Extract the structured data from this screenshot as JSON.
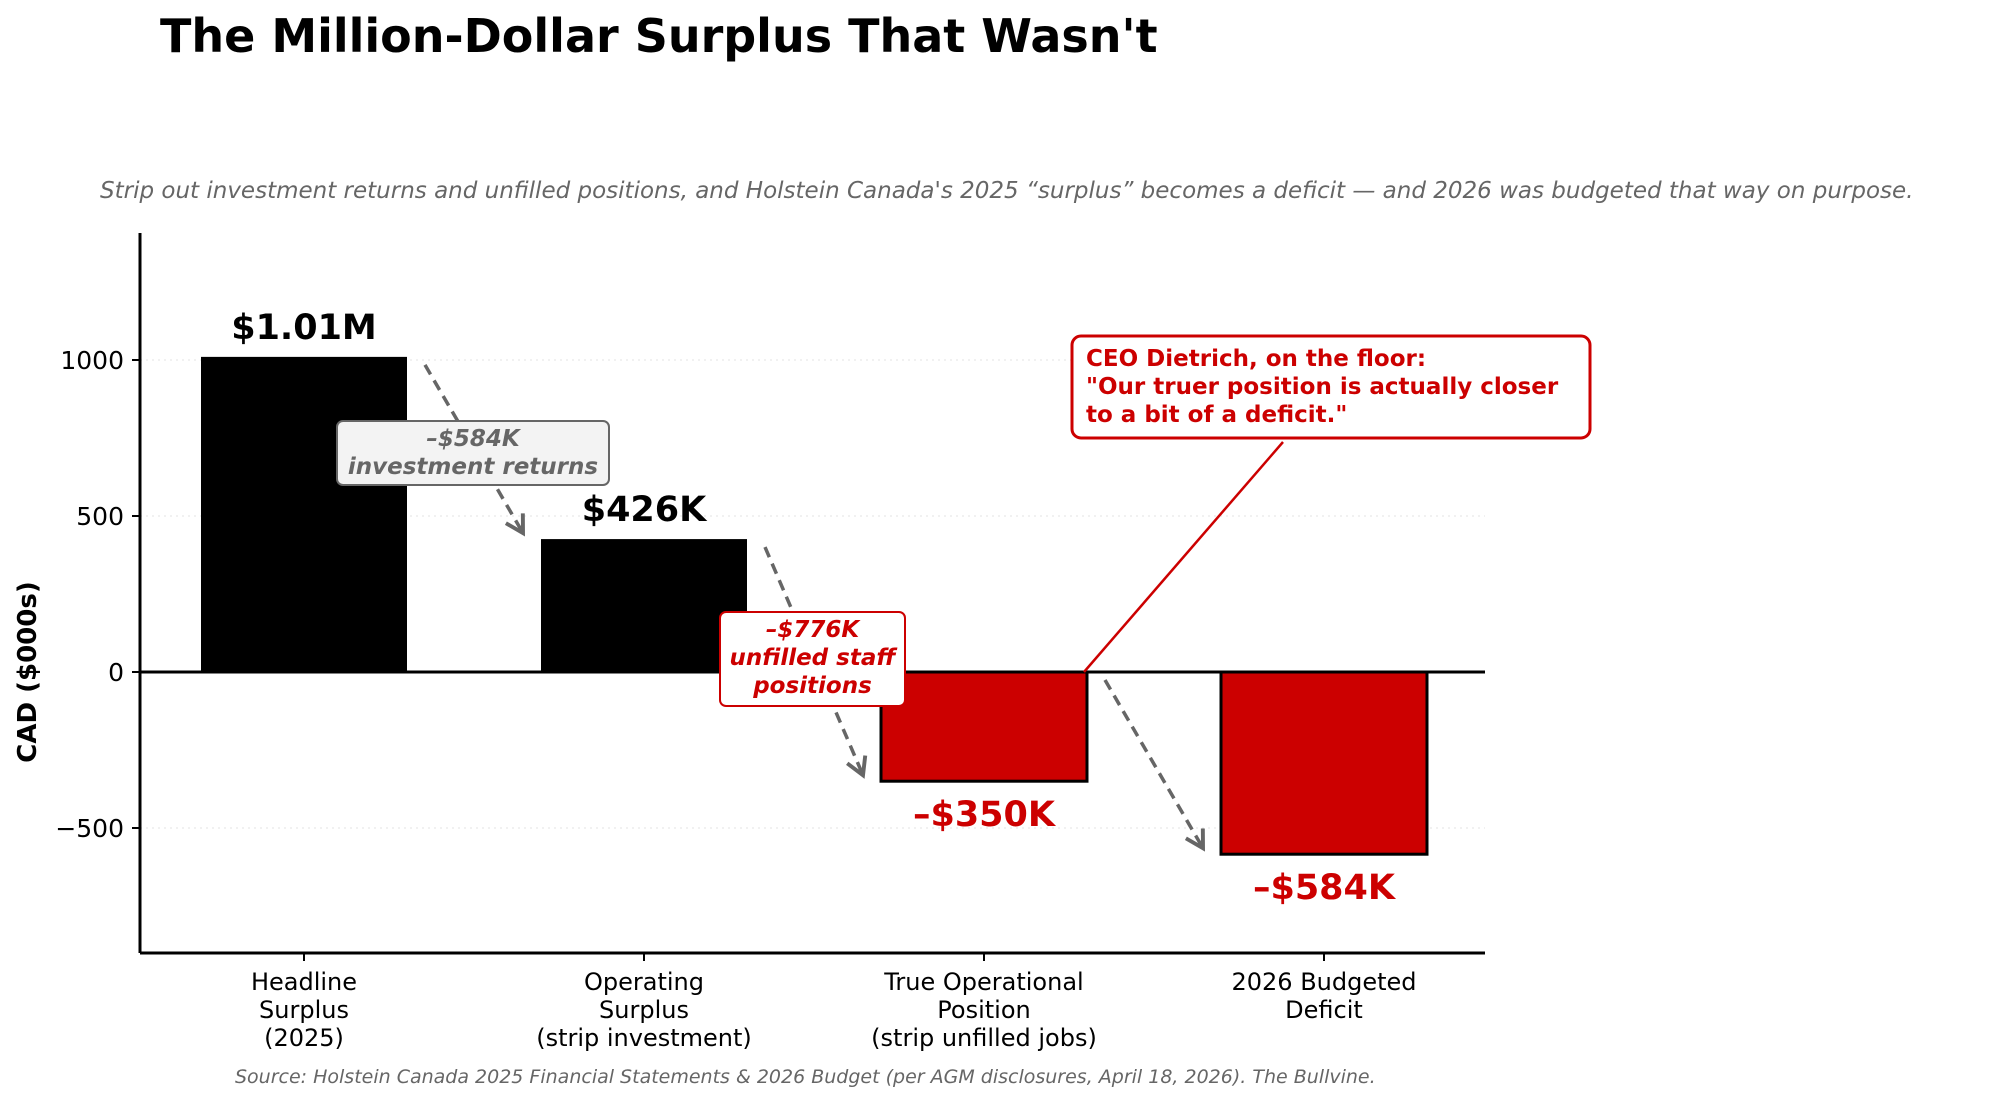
{
  "colors": {
    "positive_bar": "#000000",
    "negative_bar": "#cc0000",
    "annotation_gray": "#666666",
    "annotation_red": "#cc0000",
    "text": "#000000",
    "subtitle": "#666666"
  },
  "chart_data": {
    "type": "bar",
    "title": "The Million-Dollar Surplus That Wasn't",
    "subtitle": "Strip out investment returns and unfilled positions, and Holstein Canada's 2025 “surplus” becomes a deficit — and 2026 was budgeted that way on purpose.",
    "ylabel": "CAD ($000s)",
    "xlabel": "",
    "ylim": [
      -900,
      1400
    ],
    "yticks": [
      -500,
      0,
      500,
      1000
    ],
    "ytick_labels": [
      "−500",
      "0",
      "500",
      "1000"
    ],
    "grid": "horizontal dotted",
    "categories": [
      [
        "Headline",
        "Surplus",
        "(2025)"
      ],
      [
        "Operating",
        "Surplus",
        "(strip investment)"
      ],
      [
        "True Operational",
        "Position",
        "(strip unfilled jobs)"
      ],
      [
        "2026 Budgeted",
        "Deficit"
      ]
    ],
    "values": [
      1010,
      426,
      -350,
      -584
    ],
    "value_labels": [
      "$1.01M",
      "$426K",
      "–$350K",
      "–$584K"
    ],
    "adjustments": [
      {
        "from": 0,
        "to": 1,
        "lines": [
          "–$584K",
          "investment returns"
        ],
        "style": "gray"
      },
      {
        "from": 1,
        "to": 2,
        "lines": [
          "–$776K",
          "unfilled staff",
          "positions"
        ],
        "style": "red"
      },
      {
        "from": 2,
        "to": 3,
        "lines": [],
        "style": "gray"
      }
    ],
    "callout": {
      "lines": [
        "CEO Dietrich, on the floor:",
        "\"Our truer position is actually closer",
        "to a bit of a deficit.\""
      ],
      "points_to_category": 2
    },
    "source": "Source: Holstein Canada 2025 Financial Statements & 2026 Budget (per AGM disclosures, April 18, 2026). The Bullvine."
  }
}
